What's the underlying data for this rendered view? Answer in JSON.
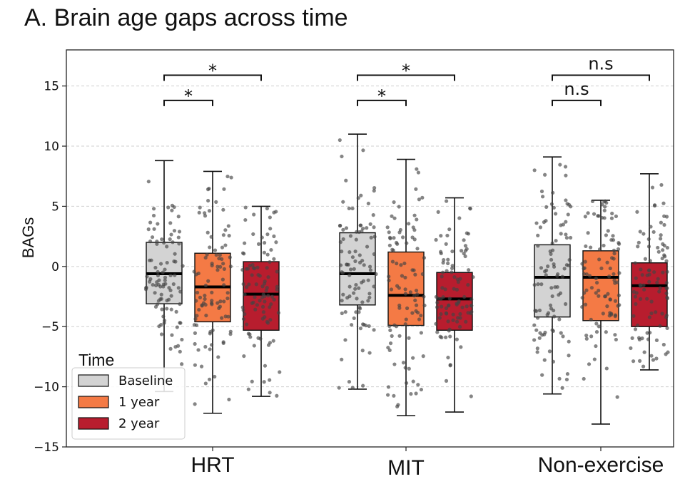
{
  "chart_data": {
    "type": "box",
    "title": "A. Brain age gaps across time",
    "xlabel": "",
    "ylabel": "BAGs",
    "ylim": [
      -15,
      18
    ],
    "yticks": [
      -15,
      -10,
      -5,
      0,
      5,
      10,
      15
    ],
    "ytick_labels": [
      "−15",
      "−10",
      "−5",
      "0",
      "5",
      "10",
      "15"
    ],
    "grid": true,
    "groups": [
      "HRT",
      "MIT",
      "Non-exercise"
    ],
    "legend": {
      "title": "Time",
      "position": "lower-left",
      "entries": [
        "Baseline",
        "1 year",
        "2 year"
      ]
    },
    "series_colors": [
      "#d3d3d3",
      "#f47a45",
      "#b81d2e"
    ],
    "boxes": [
      {
        "group": "HRT",
        "time": "Baseline",
        "whisker_low": -10.4,
        "q1": -3.1,
        "median": -0.6,
        "q3": 2.0,
        "whisker_high": 8.8,
        "n": 95
      },
      {
        "group": "HRT",
        "time": "1 year",
        "whisker_low": -12.2,
        "q1": -4.6,
        "median": -1.7,
        "q3": 1.1,
        "whisker_high": 7.9,
        "n": 95
      },
      {
        "group": "HRT",
        "time": "2 year",
        "whisker_low": -10.8,
        "q1": -5.3,
        "median": -2.3,
        "q3": 0.4,
        "whisker_high": 5.0,
        "n": 95
      },
      {
        "group": "MIT",
        "time": "Baseline",
        "whisker_low": -10.2,
        "q1": -3.2,
        "median": -0.6,
        "q3": 2.8,
        "whisker_high": 11.0,
        "n": 95
      },
      {
        "group": "MIT",
        "time": "1 year",
        "whisker_low": -12.4,
        "q1": -4.9,
        "median": -2.4,
        "q3": 1.2,
        "whisker_high": 8.9,
        "n": 95
      },
      {
        "group": "MIT",
        "time": "2 year",
        "whisker_low": -12.1,
        "q1": -5.3,
        "median": -2.7,
        "q3": -0.5,
        "whisker_high": 5.7,
        "n": 95
      },
      {
        "group": "Non-exercise",
        "time": "Baseline",
        "whisker_low": -10.6,
        "q1": -4.2,
        "median": -0.9,
        "q3": 1.8,
        "whisker_high": 9.1,
        "n": 95
      },
      {
        "group": "Non-exercise",
        "time": "1 year",
        "whisker_low": -13.1,
        "q1": -4.5,
        "median": -0.9,
        "q3": 1.3,
        "whisker_high": 5.5,
        "n": 95
      },
      {
        "group": "Non-exercise",
        "time": "2 year",
        "whisker_low": -8.6,
        "q1": -5.0,
        "median": -1.6,
        "q3": 0.3,
        "whisker_high": 7.7,
        "n": 95
      }
    ],
    "significance": [
      {
        "group": "HRT",
        "from": "Baseline",
        "to": "1 year",
        "label": "*"
      },
      {
        "group": "HRT",
        "from": "Baseline",
        "to": "2 year",
        "label": "*"
      },
      {
        "group": "MIT",
        "from": "Baseline",
        "to": "1 year",
        "label": "*"
      },
      {
        "group": "MIT",
        "from": "Baseline",
        "to": "2 year",
        "label": "*"
      },
      {
        "group": "Non-exercise",
        "from": "Baseline",
        "to": "1 year",
        "label": "n.s"
      },
      {
        "group": "Non-exercise",
        "from": "Baseline",
        "to": "2 year",
        "label": "n.s"
      }
    ]
  }
}
